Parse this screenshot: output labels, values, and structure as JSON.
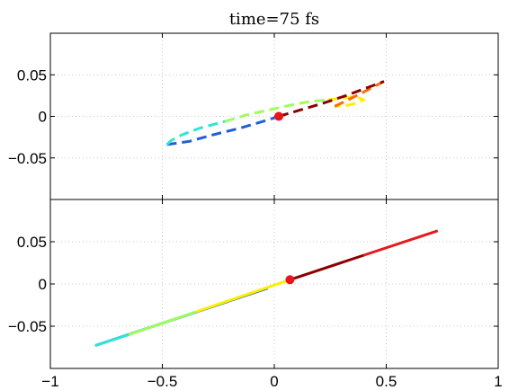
{
  "chart_data": {
    "type": "line",
    "title": "time=75 fs",
    "xlim": [
      -1,
      1
    ],
    "x_ticks": [
      -1,
      -0.5,
      0,
      0.5,
      1
    ],
    "x_tick_labels": [
      "−1",
      "−0.5",
      "0",
      "0.5",
      "1"
    ],
    "grid": true,
    "colors": {
      "dark_red": "#8b0000",
      "red": "#e41a1c",
      "orange": "#ff6a00",
      "yellow": "#ffee00",
      "green": "#9dff5a",
      "cyan": "#2ee6d6",
      "blue": "#1f5fd6",
      "marker": "#e8141e"
    },
    "panels": [
      {
        "name": "top",
        "ylim": [
          -0.1,
          0.1
        ],
        "y_ticks": [
          0.05,
          0,
          -0.05
        ],
        "y_tick_labels": [
          "0.05",
          "0",
          "−0.05"
        ],
        "line_style": "dashed",
        "series": [
          {
            "color": "blue",
            "x": [
              -0.48,
              -0.38,
              -0.27,
              -0.15,
              -0.05,
              0.02
            ],
            "y": [
              -0.034,
              -0.03,
              -0.022,
              -0.014,
              -0.006,
              0.0
            ]
          },
          {
            "color": "cyan",
            "x": [
              -0.48,
              -0.46,
              -0.41,
              -0.33,
              -0.22
            ],
            "y": [
              -0.034,
              -0.029,
              -0.022,
              -0.014,
              -0.006
            ]
          },
          {
            "color": "green",
            "x": [
              -0.22,
              -0.12,
              -0.02,
              0.08,
              0.16,
              0.24
            ],
            "y": [
              -0.006,
              0.002,
              0.008,
              0.014,
              0.018,
              0.02
            ]
          },
          {
            "color": "yellow",
            "x": [
              0.24,
              0.31,
              0.36,
              0.4,
              0.37,
              0.32,
              0.27
            ],
            "y": [
              0.02,
              0.022,
              0.024,
              0.02,
              0.016,
              0.013,
              0.012
            ]
          },
          {
            "color": "orange",
            "x": [
              0.27,
              0.33,
              0.39,
              0.44,
              0.49
            ],
            "y": [
              0.012,
              0.02,
              0.028,
              0.035,
              0.042
            ]
          },
          {
            "color": "dark_red",
            "x": [
              0.02,
              0.12,
              0.22,
              0.32,
              0.42,
              0.49
            ],
            "y": [
              0.0,
              0.008,
              0.016,
              0.025,
              0.035,
              0.042
            ]
          }
        ],
        "marker": {
          "x": 0.02,
          "y": 0.0
        }
      },
      {
        "name": "bottom",
        "ylim": [
          -0.1,
          0.1
        ],
        "y_ticks": [
          0.05,
          0,
          -0.05
        ],
        "y_tick_labels": [
          "0.05",
          "0",
          "−0.05"
        ],
        "line_style": "solid",
        "series": [
          {
            "color": "blue",
            "x": [
              -0.8,
              -0.03
            ],
            "y": [
              -0.073,
              -0.005
            ]
          },
          {
            "color": "cyan",
            "x": [
              -0.8,
              -0.65
            ],
            "y": [
              -0.073,
              -0.06
            ]
          },
          {
            "color": "green",
            "x": [
              -0.65,
              -0.35
            ],
            "y": [
              -0.06,
              -0.033
            ]
          },
          {
            "color": "yellow",
            "x": [
              -0.35,
              0.07
            ],
            "y": [
              -0.033,
              0.005
            ]
          },
          {
            "color": "dark_red",
            "x": [
              0.07,
              0.4
            ],
            "y": [
              0.005,
              0.034
            ]
          },
          {
            "color": "red",
            "x": [
              0.4,
              0.73
            ],
            "y": [
              0.034,
              0.063
            ]
          }
        ],
        "marker": {
          "x": 0.07,
          "y": 0.005
        }
      }
    ]
  }
}
